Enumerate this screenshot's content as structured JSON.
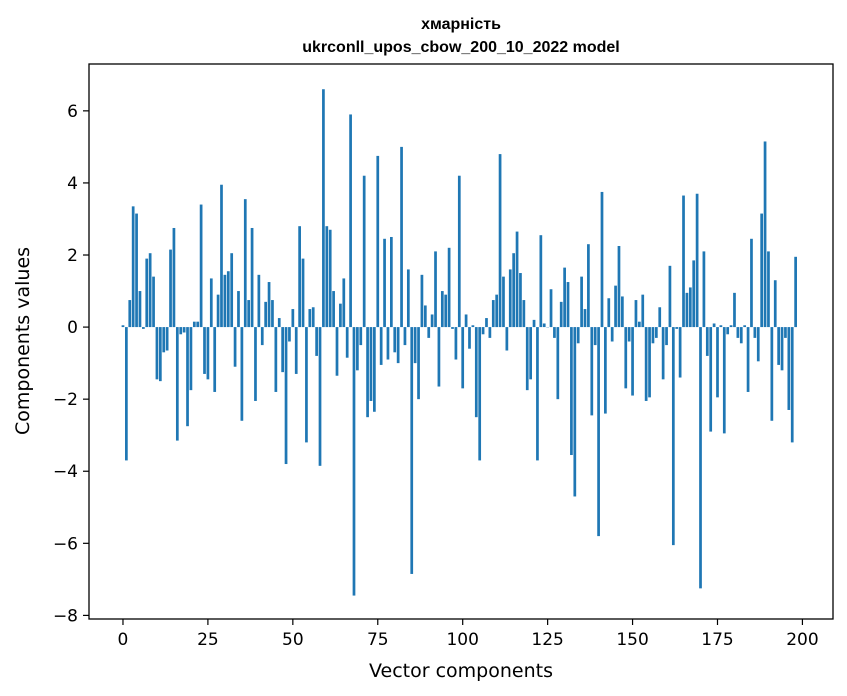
{
  "chart_data": {
    "type": "bar",
    "title": "хмарність",
    "subtitle": "ukrconll_upos_cbow_200_10_2022 model",
    "xlabel": "Vector components",
    "ylabel": "Components values",
    "xlim": [
      -10,
      209
    ],
    "ylim": [
      -8.1,
      7.3
    ],
    "xticks": [
      0,
      25,
      50,
      75,
      100,
      125,
      150,
      175,
      200
    ],
    "yticks": [
      -8,
      -6,
      -4,
      -2,
      0,
      2,
      4,
      6
    ],
    "xtick_labels": [
      "0",
      "25",
      "50",
      "75",
      "100",
      "125",
      "150",
      "175",
      "200"
    ],
    "ytick_labels": [
      "−8",
      "−6",
      "−4",
      "−2",
      "0",
      "2",
      "4",
      "6"
    ],
    "grid": false,
    "bar_color": "#1f77b4",
    "values": [
      0.05,
      -3.7,
      0.75,
      3.35,
      3.15,
      1.0,
      -0.05,
      1.9,
      2.05,
      1.4,
      -1.45,
      -1.5,
      -0.7,
      -0.65,
      2.15,
      2.75,
      -3.15,
      -0.2,
      -0.15,
      -2.75,
      -1.75,
      0.15,
      0.15,
      3.4,
      -1.3,
      -1.45,
      1.35,
      -1.8,
      0.9,
      3.95,
      1.45,
      1.55,
      2.05,
      -1.1,
      1.0,
      -2.6,
      3.55,
      0.75,
      2.75,
      -2.05,
      1.45,
      -0.5,
      0.7,
      1.25,
      0.75,
      -1.8,
      0.25,
      -1.25,
      -3.8,
      -0.4,
      0.5,
      -1.3,
      2.8,
      1.9,
      -3.2,
      0.5,
      0.55,
      -0.8,
      -3.85,
      6.6,
      2.8,
      2.7,
      1.0,
      -1.35,
      0.65,
      1.35,
      -0.85,
      5.9,
      -7.45,
      -1.2,
      -0.5,
      4.2,
      -2.5,
      -2.05,
      -2.35,
      4.75,
      -1.05,
      2.45,
      -0.9,
      2.5,
      -0.7,
      -1.0,
      5.0,
      -0.5,
      1.6,
      -6.85,
      -1.0,
      -2.0,
      1.45,
      0.6,
      -0.3,
      0.35,
      2.1,
      -1.65,
      1.0,
      0.9,
      2.2,
      -0.05,
      -0.9,
      4.2,
      -1.7,
      0.35,
      -0.6,
      0.05,
      -2.5,
      -3.7,
      -0.2,
      0.25,
      -0.3,
      0.75,
      0.9,
      4.8,
      1.4,
      -0.65,
      1.6,
      2.05,
      2.65,
      1.5,
      0.75,
      -1.75,
      -1.45,
      0.2,
      -3.7,
      2.55,
      0.1,
      0.0,
      1.05,
      -0.3,
      -2.0,
      0.7,
      1.65,
      1.25,
      -3.55,
      -4.7,
      -0.45,
      1.4,
      0.5,
      2.3,
      -2.45,
      -0.5,
      -5.8,
      3.75,
      -2.4,
      0.8,
      -0.4,
      1.15,
      2.25,
      0.85,
      -1.7,
      -0.4,
      -1.9,
      0.75,
      0.15,
      0.9,
      -2.05,
      -1.95,
      -0.45,
      -0.3,
      0.55,
      -1.45,
      -0.5,
      1.7,
      -6.05,
      -0.05,
      -1.4,
      3.65,
      0.95,
      1.1,
      1.85,
      3.7,
      -7.25,
      2.1,
      -0.8,
      -2.9,
      0.1,
      -1.95,
      0.05,
      -2.95,
      -0.2,
      0.05,
      0.95,
      -0.3,
      -0.45,
      0.05,
      -1.8,
      2.45,
      -0.3,
      -0.95,
      3.15,
      5.15,
      2.1,
      -2.6,
      1.3,
      -1.05,
      -1.2,
      -0.3,
      -2.3,
      -3.2,
      1.95
    ]
  }
}
